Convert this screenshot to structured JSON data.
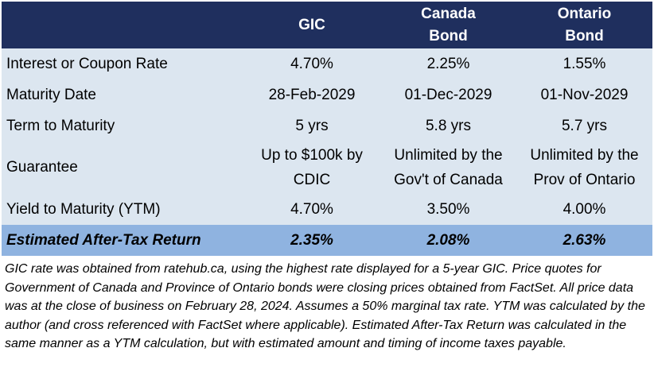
{
  "table": {
    "headers": [
      {
        "lines": [
          ""
        ]
      },
      {
        "lines": [
          "GIC"
        ]
      },
      {
        "lines": [
          "Canada",
          "Bond"
        ]
      },
      {
        "lines": [
          "Ontario",
          "Bond"
        ]
      }
    ],
    "rows": [
      {
        "label": "Interest or Coupon Rate",
        "values": [
          [
            "4.70%"
          ],
          [
            "2.25%"
          ],
          [
            "1.55%"
          ]
        ]
      },
      {
        "label": "Maturity Date",
        "values": [
          [
            "28-Feb-2029"
          ],
          [
            "01-Dec-2029"
          ],
          [
            "01-Nov-2029"
          ]
        ]
      },
      {
        "label": "Term to Maturity",
        "values": [
          [
            "5 yrs"
          ],
          [
            "5.8 yrs"
          ],
          [
            "5.7 yrs"
          ]
        ]
      },
      {
        "label": "Guarantee",
        "values": [
          [
            "Up to $100k by",
            "CDIC"
          ],
          [
            "Unlimited by the",
            "Gov't of Canada"
          ],
          [
            "Unlimited by the",
            "Prov of Ontario"
          ]
        ]
      },
      {
        "label": "Yield to Maturity (YTM)",
        "values": [
          [
            "4.70%"
          ],
          [
            "3.50%"
          ],
          [
            "4.00%"
          ]
        ]
      }
    ],
    "total": {
      "label": "Estimated After-Tax Return",
      "values": [
        [
          "2.35%"
        ],
        [
          "2.08%"
        ],
        [
          "2.63%"
        ]
      ]
    }
  },
  "footnote": "GIC rate was obtained from ratehub.ca, using the highest rate displayed for a 5-year GIC. Price quotes for Government of Canada and Province of Ontario bonds were closing prices obtained from FactSet. All price data was at the close of business on February 28, 2024. Assumes a 50% marginal tax rate. YTM was calculated by the author (and cross referenced with FactSet where applicable). Estimated After-Tax Return was calculated in the same manner as  a YTM calculation, but with estimated amount and timing of income taxes payable.",
  "colors": {
    "header_bg": "#1f2f5e",
    "row_bg": "#dce6f0",
    "total_bg": "#8fb3e0"
  }
}
